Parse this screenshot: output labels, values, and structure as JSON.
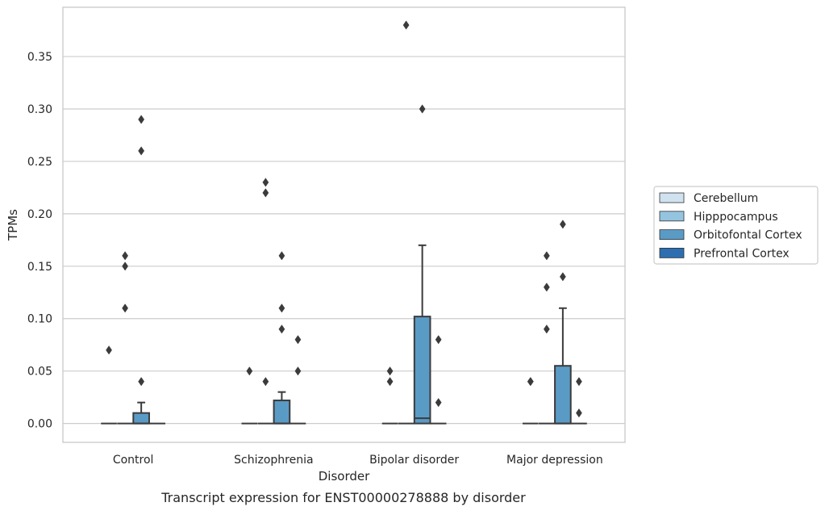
{
  "chart_data": {
    "type": "box",
    "xlabel": "Disorder",
    "ylabel": "TPMs",
    "caption": "Transcript expression for ENST00000278888 by disorder",
    "ylim": [
      -0.018,
      0.397
    ],
    "yticks": [
      "0.00",
      "0.05",
      "0.10",
      "0.15",
      "0.20",
      "0.25",
      "0.30",
      "0.35"
    ],
    "grid": true,
    "legend_position": "right",
    "categories": [
      "Control",
      "Schizophrenia",
      "Bipolar disorder",
      "Major depression"
    ],
    "hue_order": [
      "Cerebellum",
      "Hipppocampus",
      "Orbitofontal Cortex",
      "Prefrontal Cortex"
    ],
    "colors": {
      "Cerebellum": "#d0e1f0",
      "Hipppocampus": "#94c4df",
      "Orbitofontal Cortex": "#5a9bc6",
      "Prefrontal Cortex": "#2d6eb0",
      "line": "#3b3b3b",
      "grid": "#cccccc",
      "spine": "#cccccc"
    },
    "series": [
      {
        "name": "Cerebellum",
        "boxes": [
          {
            "q1": 0,
            "median": 0,
            "q3": 0,
            "whislo": 0,
            "whishi": 0,
            "fliers": [
              0.07
            ]
          },
          {
            "q1": 0,
            "median": 0,
            "q3": 0,
            "whislo": 0,
            "whishi": 0,
            "fliers": [
              0.05
            ]
          },
          {
            "q1": 0,
            "median": 0,
            "q3": 0,
            "whislo": 0,
            "whishi": 0,
            "fliers": [
              0.05,
              0.04
            ]
          },
          {
            "q1": 0,
            "median": 0,
            "q3": 0,
            "whislo": 0,
            "whishi": 0,
            "fliers": [
              0.04,
              0.04
            ]
          }
        ]
      },
      {
        "name": "Hipppocampus",
        "boxes": [
          {
            "q1": 0,
            "median": 0,
            "q3": 0,
            "whislo": 0,
            "whishi": 0,
            "fliers": [
              0.16,
              0.15,
              0.11
            ]
          },
          {
            "q1": 0,
            "median": 0,
            "q3": 0,
            "whislo": 0,
            "whishi": 0,
            "fliers": [
              0.23,
              0.22,
              0.04
            ]
          },
          {
            "q1": 0,
            "median": 0,
            "q3": 0,
            "whislo": 0,
            "whishi": 0,
            "fliers": [
              0.38
            ]
          },
          {
            "q1": 0,
            "median": 0,
            "q3": 0,
            "whislo": 0,
            "whishi": 0,
            "fliers": [
              0.16,
              0.13,
              0.09
            ]
          }
        ]
      },
      {
        "name": "Orbitofontal Cortex",
        "boxes": [
          {
            "q1": 0,
            "median": 0,
            "q3": 0.01,
            "whislo": 0,
            "whishi": 0.02,
            "fliers": [
              0.29,
              0.26,
              0.04
            ]
          },
          {
            "q1": 0,
            "median": 0,
            "q3": 0.022,
            "whislo": 0,
            "whishi": 0.03,
            "fliers": [
              0.16,
              0.11,
              0.09
            ]
          },
          {
            "q1": 0,
            "median": 0.005,
            "q3": 0.102,
            "whislo": 0,
            "whishi": 0.17,
            "fliers": [
              0.3
            ]
          },
          {
            "q1": 0,
            "median": 0,
            "q3": 0.055,
            "whislo": 0,
            "whishi": 0.11,
            "fliers": [
              0.19,
              0.14
            ]
          }
        ]
      },
      {
        "name": "Prefrontal Cortex",
        "boxes": [
          {
            "q1": 0,
            "median": 0,
            "q3": 0,
            "whislo": 0,
            "whishi": 0,
            "fliers": []
          },
          {
            "q1": 0,
            "median": 0,
            "q3": 0,
            "whislo": 0,
            "whishi": 0,
            "fliers": [
              0.08,
              0.05
            ]
          },
          {
            "q1": 0,
            "median": 0,
            "q3": 0,
            "whislo": 0,
            "whishi": 0,
            "fliers": [
              0.08,
              0.02
            ]
          },
          {
            "q1": 0,
            "median": 0,
            "q3": 0,
            "whislo": 0,
            "whishi": 0,
            "fliers": [
              0.04,
              0.01
            ]
          }
        ]
      }
    ]
  }
}
